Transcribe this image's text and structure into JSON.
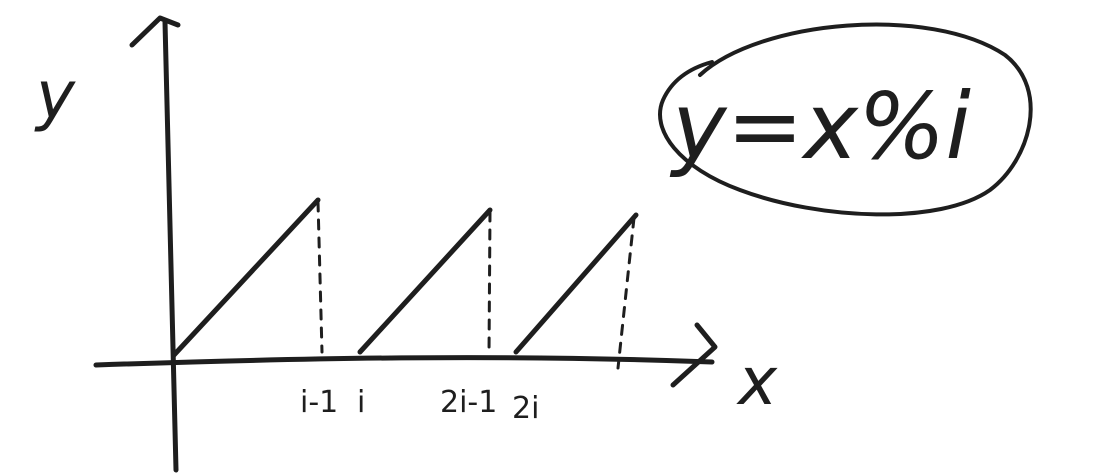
{
  "axes": {
    "y_label": "y",
    "x_label": "x"
  },
  "formula": {
    "text": "y=x%i"
  },
  "tick_labels": [
    "i-1",
    "i",
    "2i-1",
    "2i"
  ],
  "chart_data": {
    "type": "line",
    "title": "y=x%i",
    "xlabel": "x",
    "ylabel": "y",
    "x_tick_labels": [
      "i-1",
      "i",
      "2i-1",
      "2i"
    ],
    "series": [
      {
        "x": [
          "0",
          "i-1"
        ],
        "y": [
          "0",
          "i-1"
        ]
      },
      {
        "x": [
          "i",
          "2i-1"
        ],
        "y": [
          "0",
          "i-1"
        ]
      },
      {
        "x": [
          "2i",
          "3i-1"
        ],
        "y": [
          "0",
          "i-1"
        ]
      }
    ],
    "grid": false
  }
}
